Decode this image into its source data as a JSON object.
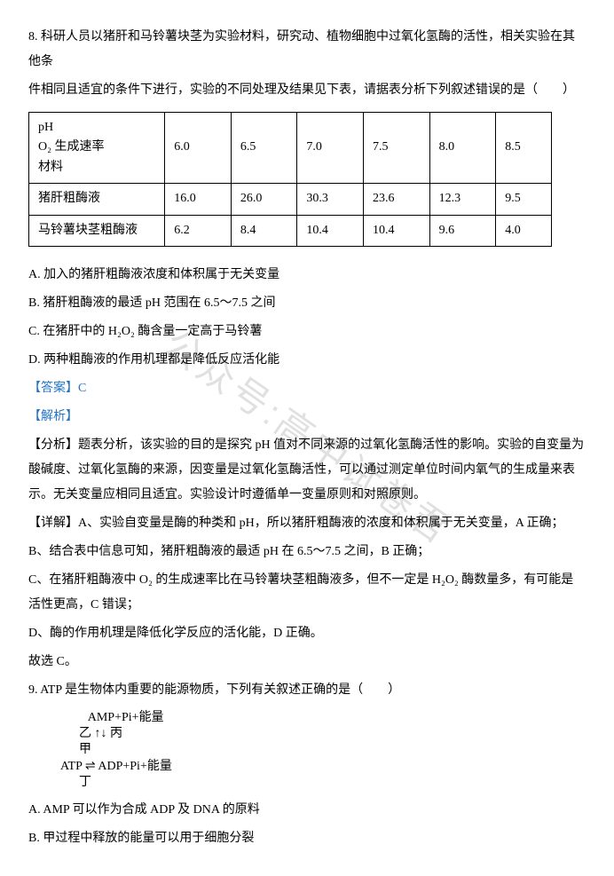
{
  "q8": {
    "stem1": "8. 科研人员以猪肝和马铃薯块茎为实验材料，研究动、植物细胞中过氧化氢酶的活性，相关实验在其他条",
    "stem2": "件相同且适宜的条件下进行，实验的不同处理及结果见下表，请据表分析下列叙述错误的是（　　）",
    "table": {
      "header_lines": [
        "pH",
        "O₂ 生成速率",
        "材料"
      ],
      "cols": [
        "6.0",
        "6.5",
        "7.0",
        "7.5",
        "8.0",
        "8.5"
      ],
      "row1_label": "猪肝粗酶液",
      "row1": [
        "16.0",
        "26.0",
        "30.3",
        "23.6",
        "12.3",
        "9.5"
      ],
      "row2_label": "马铃薯块茎粗酶液",
      "row2": [
        "6.2",
        "8.4",
        "10.4",
        "10.4",
        "9.6",
        "4.0"
      ]
    },
    "optA": "A. 加入的猪肝粗酶液浓度和体积属于无关变量",
    "optB": "B. 猪肝粗酶液的最适 pH 范围在 6.5～7.5 之间",
    "optC": "C. 在猪肝中的 H₂O₂ 酶含量一定高于马铃薯",
    "optD": "D. 两种粗酶液的作用机理都是降低反应活化能",
    "answer_label": "【答案】",
    "answer": "C",
    "jiexi_label": "【解析】",
    "fenxi": "【分析】题表分析，该实验的目的是探究 pH 值对不同来源的过氧化氢酶活性的影响。实验的自变量为酸碱度、过氧化氢酶的来源，因变量是过氧化氢酶活性，可以通过测定单位时间内氧气的生成量来表示。无关变量应相同且适宜。实验设计时遵循单一变量原则和对照原则。",
    "xiangjie_a": "【详解】A、实验自变量是酶的种类和 pH，所以猪肝粗酶液的浓度和体积属于无关变量，A 正确；",
    "xiangjie_b": "B、结合表中信息可知，猪肝粗酶液的最适 pH 在 6.5～7.5 之间，B 正确；",
    "xiangjie_c": "C、在猪肝粗酶液中 O₂ 的生成速率比在马铃薯块茎粗酶液多，但不一定是 H₂O₂ 酶数量多，有可能是活性更高，C 错误；",
    "xiangjie_d": "D、酶的作用机理是降低化学反应的活化能，D 正确。",
    "guxuan": "故选 C。"
  },
  "q9": {
    "stem": "9. ATP 是生物体内重要的能源物质，下列有关叙述正确的是（　　）",
    "diagram": {
      "top": "AMP+Pi+能量",
      "mid_left": "乙",
      "mid_right": "丙",
      "bottom_left": "ATP",
      "bottom_mid_top": "甲",
      "bottom_right": "ADP+Pi+能量",
      "bottom_mid_bottom": "丁"
    },
    "optA": "A. AMP 可以作为合成 ADP 及 DNA 的原料",
    "optB": "B. 甲过程中释放的能量可以用于细胞分裂"
  },
  "watermark": "公众号:高中试卷君"
}
